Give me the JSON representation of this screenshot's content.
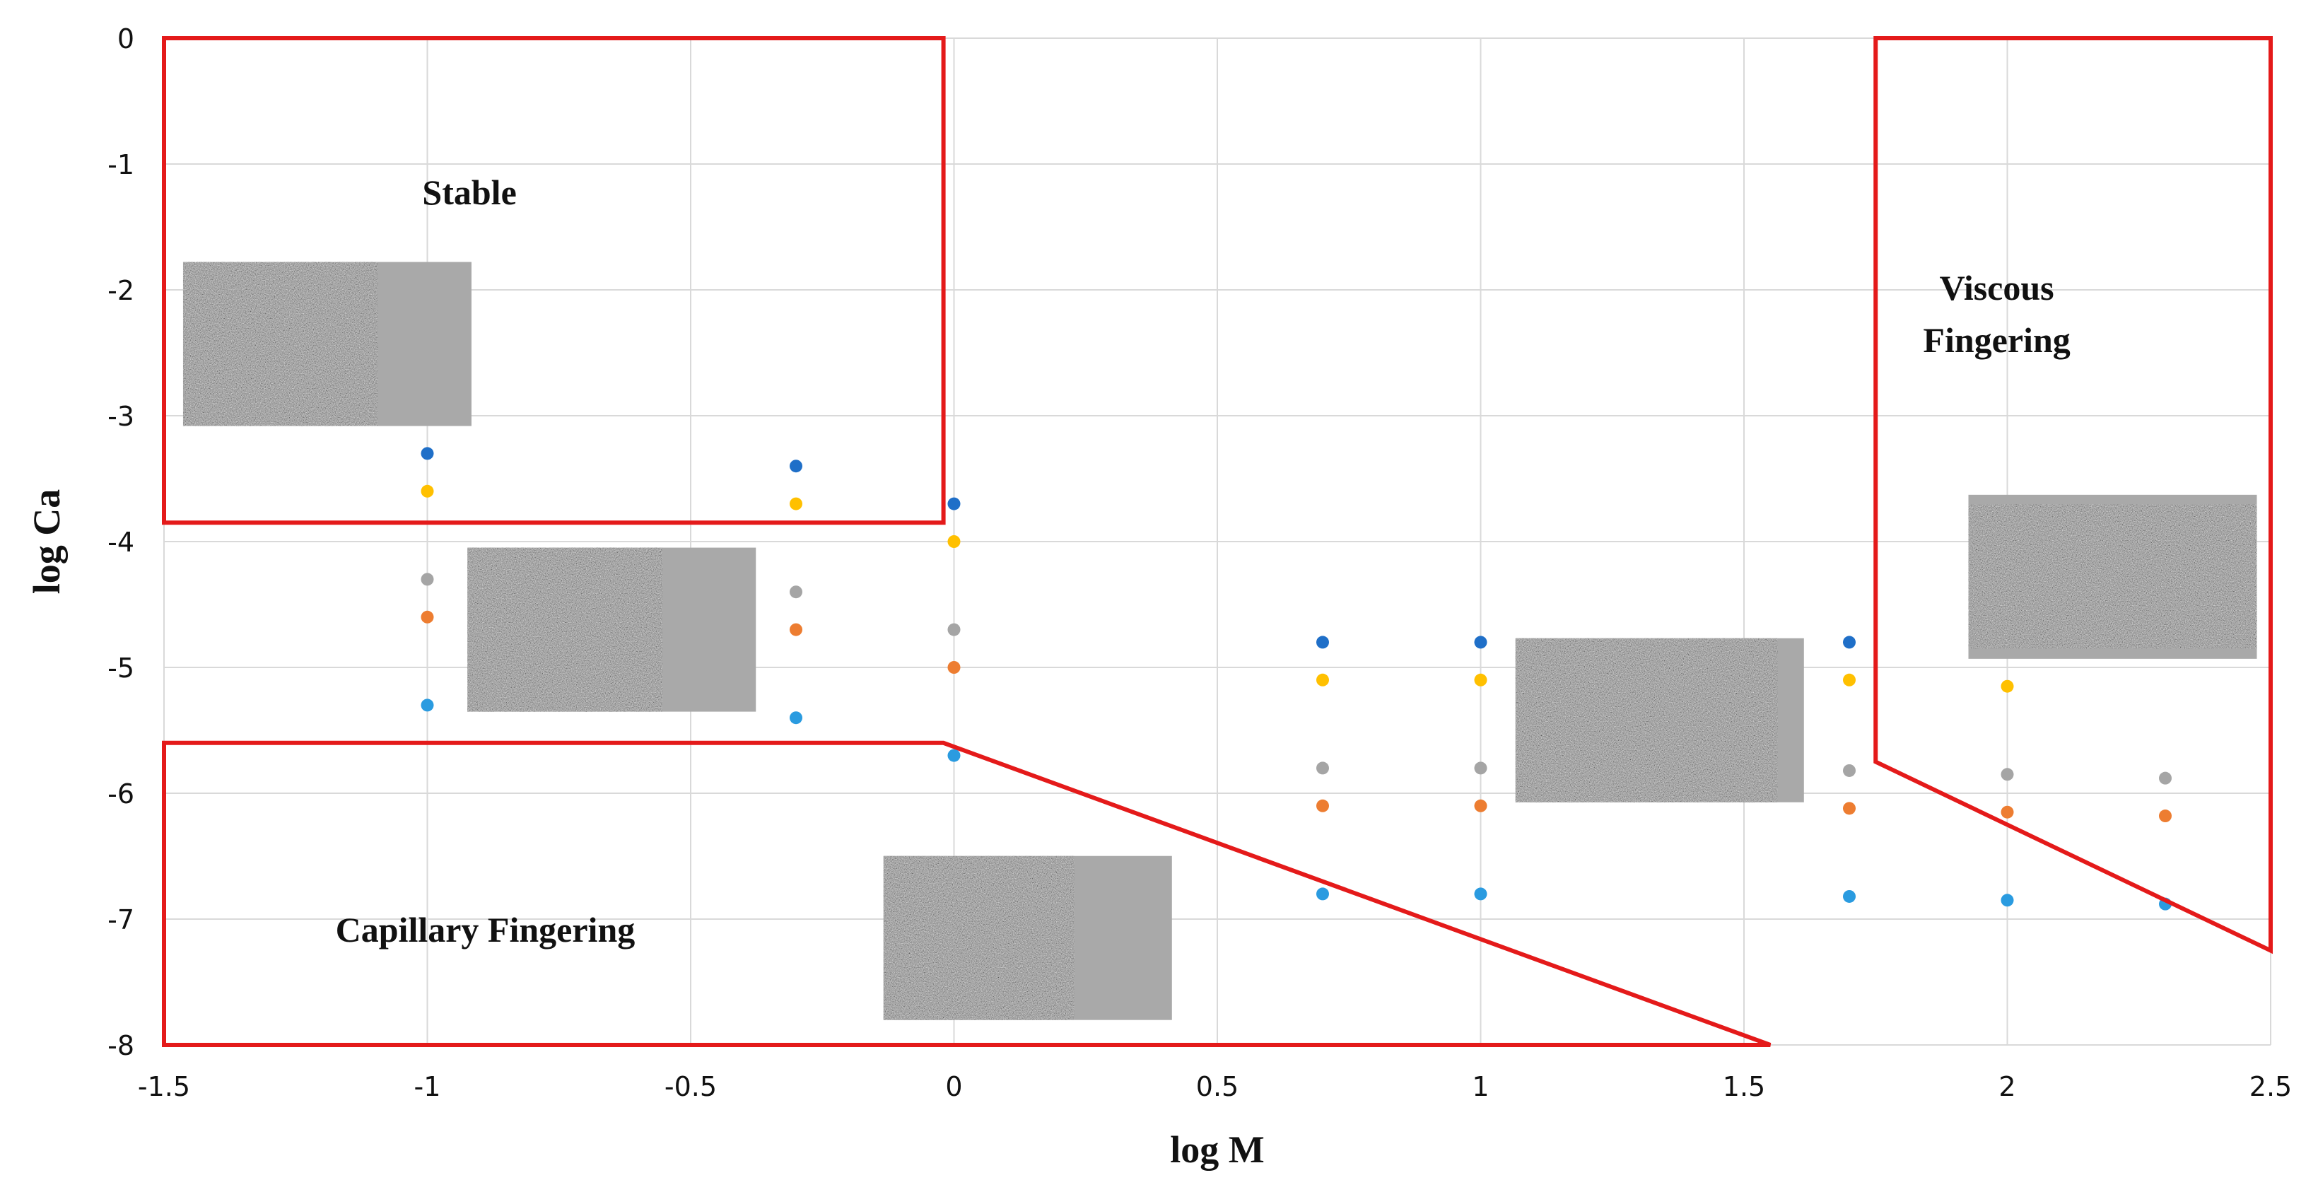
{
  "chart_data": {
    "type": "scatter",
    "title": "",
    "xlabel": "log M",
    "ylabel": "log Ca",
    "xlim": [
      -1.5,
      2.5
    ],
    "ylim": [
      -8,
      0
    ],
    "x_ticks": [
      "-1.5",
      "-1",
      "-0.5",
      "0",
      "0.5",
      "1",
      "1.5",
      "2",
      "2.5"
    ],
    "y_ticks": [
      "0",
      "-1",
      "-2",
      "-3",
      "-4",
      "-5",
      "-6",
      "-7",
      "-8"
    ],
    "grid": true,
    "series": [
      {
        "name": "series-1",
        "color": "#1f6fc8",
        "points": [
          [
            -1,
            -3.3
          ],
          [
            -0.3,
            -3.4
          ],
          [
            0,
            -3.7
          ],
          [
            0.7,
            -4.8
          ],
          [
            1,
            -4.8
          ],
          [
            1.7,
            -4.8
          ]
        ]
      },
      {
        "name": "series-2",
        "color": "#ffc000",
        "points": [
          [
            -1,
            -3.6
          ],
          [
            -0.3,
            -3.7
          ],
          [
            0,
            -4.0
          ],
          [
            0.7,
            -5.1
          ],
          [
            1,
            -5.1
          ],
          [
            1.7,
            -5.1
          ],
          [
            2,
            -5.15
          ]
        ]
      },
      {
        "name": "series-3",
        "color": "#a5a5a5",
        "points": [
          [
            -1,
            -4.3
          ],
          [
            -0.3,
            -4.4
          ],
          [
            0,
            -4.7
          ],
          [
            0.7,
            -5.8
          ],
          [
            1,
            -5.8
          ],
          [
            1.7,
            -5.82
          ],
          [
            2,
            -5.85
          ],
          [
            2.3,
            -5.88
          ]
        ]
      },
      {
        "name": "series-4",
        "color": "#ed7d31",
        "points": [
          [
            -1,
            -4.6
          ],
          [
            -0.3,
            -4.7
          ],
          [
            0,
            -5.0
          ],
          [
            0.7,
            -6.1
          ],
          [
            1,
            -6.1
          ],
          [
            1.7,
            -6.12
          ],
          [
            2,
            -6.15
          ],
          [
            2.3,
            -6.18
          ]
        ]
      },
      {
        "name": "series-5",
        "color": "#2a9be0",
        "points": [
          [
            -1,
            -5.3
          ],
          [
            -0.3,
            -5.4
          ],
          [
            0,
            -5.7
          ],
          [
            0.7,
            -6.8
          ],
          [
            1,
            -6.8
          ],
          [
            1.7,
            -6.82
          ],
          [
            2,
            -6.85
          ],
          [
            2.3,
            -6.88
          ]
        ]
      }
    ],
    "regions": [
      {
        "name": "Stable",
        "lines": [
          "Stable"
        ],
        "color": "#e41a1a",
        "polygon": [
          [
            -1.5,
            0
          ],
          [
            -0.02,
            0
          ],
          [
            -0.02,
            -3.85
          ],
          [
            -1.5,
            -3.85
          ]
        ],
        "label_at": [
          -0.92,
          -1.32
        ]
      },
      {
        "name": "Capillary Fingering",
        "lines": [
          "Capillary Fingering"
        ],
        "color": "#e41a1a",
        "polygon": [
          [
            -1.5,
            -5.6
          ],
          [
            -0.02,
            -5.6
          ],
          [
            1.55,
            -8.0
          ],
          [
            -1.5,
            -8.0
          ]
        ],
        "label_at": [
          -0.89,
          -7.18
        ]
      },
      {
        "name": "Viscous Fingering",
        "lines": [
          "Viscous",
          "Fingering"
        ],
        "color": "#e41a1a",
        "polygon": [
          [
            1.75,
            0
          ],
          [
            2.5,
            0
          ],
          [
            2.5,
            -7.25
          ],
          [
            1.75,
            -5.75
          ]
        ],
        "label_at": [
          1.98,
          -2.08
        ]
      }
    ],
    "micrographs": [
      {
        "name": "stable-micrograph",
        "style": "stable",
        "at": [
          -1.19,
          -2.43
        ]
      },
      {
        "name": "transition-micrograph",
        "style": "stable",
        "at": [
          -0.65,
          -4.7
        ]
      },
      {
        "name": "capillary-micrograph",
        "style": "capillary",
        "at": [
          0.14,
          -7.15
        ]
      },
      {
        "name": "mixed-micrograph",
        "style": "mixed",
        "at": [
          1.34,
          -5.42
        ]
      },
      {
        "name": "viscous-micrograph",
        "style": "viscous",
        "at": [
          2.2,
          -4.28
        ]
      }
    ]
  }
}
